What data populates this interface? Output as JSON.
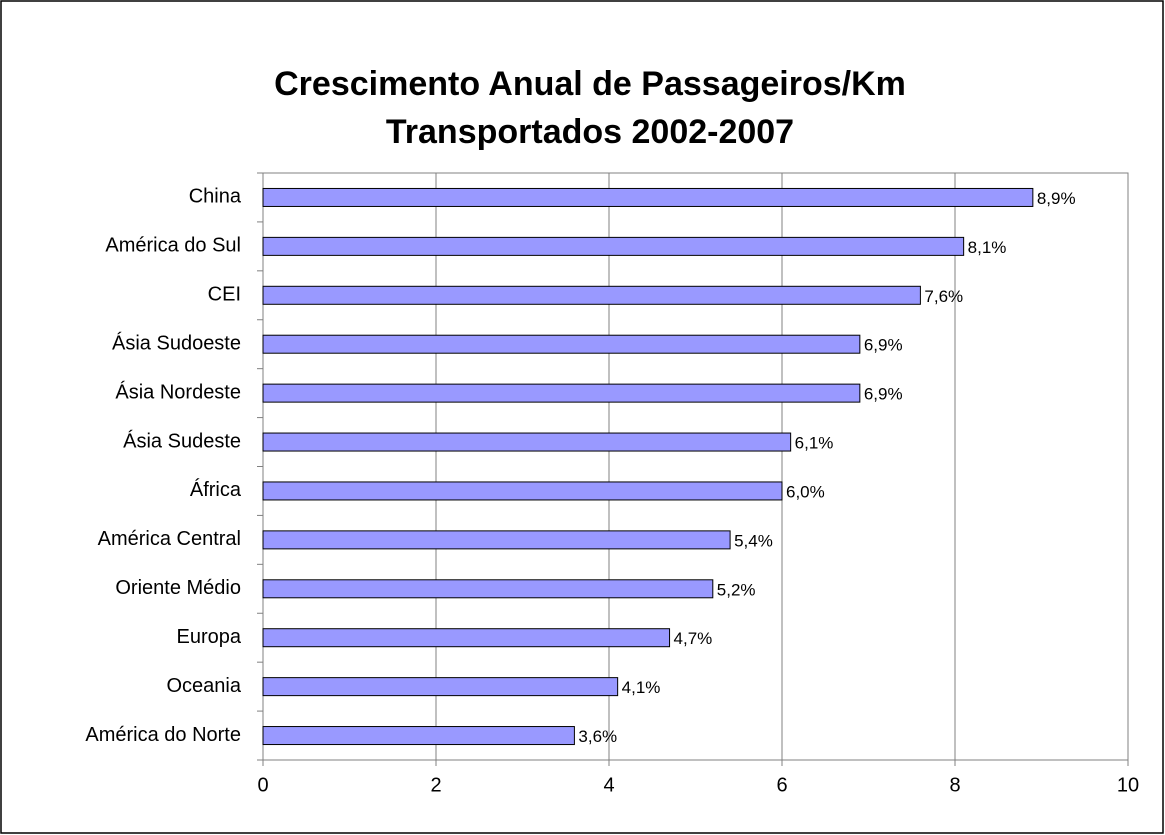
{
  "chart_data": {
    "type": "bar",
    "orientation": "horizontal",
    "title": [
      "Crescimento Anual de Passageiros/Km",
      "Transportados 2002-2007"
    ],
    "categories": [
      "China",
      "América do Sul",
      "CEI",
      "Ásia Sudoeste",
      "Ásia Nordeste",
      "Ásia Sudeste",
      "África",
      "América Central",
      "Oriente Médio",
      "Europa",
      "Oceania",
      "América do Norte"
    ],
    "values": [
      8.9,
      8.1,
      7.6,
      6.9,
      6.9,
      6.1,
      6.0,
      5.4,
      5.2,
      4.7,
      4.1,
      3.6
    ],
    "value_labels": [
      "8,9%",
      "8,1%",
      "7,6%",
      "6,9%",
      "6,9%",
      "6,1%",
      "6,0%",
      "5,4%",
      "5,2%",
      "4,7%",
      "4,1%",
      "3,6%"
    ],
    "color": "#9999ff",
    "xlim": [
      0,
      10
    ],
    "xticks": [
      0,
      2,
      4,
      6,
      8,
      10
    ],
    "grid": true
  }
}
